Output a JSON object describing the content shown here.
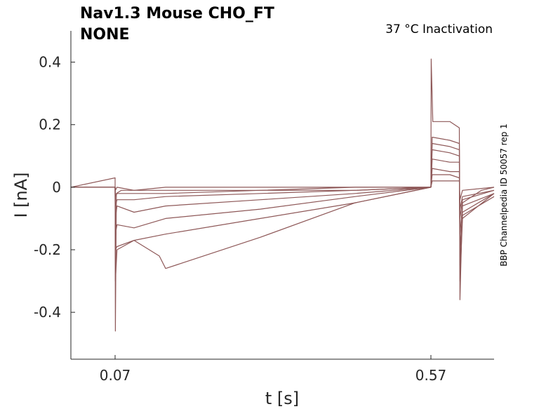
{
  "chart_data": {
    "type": "line",
    "title_lines": [
      "Nav1.3  Mouse  CHO_FT",
      "NONE"
    ],
    "condition_label": "37 °C  Inactivation",
    "side_label": "BBP Channelpedia ID 50057 rep 1",
    "xlabel": "t [s]",
    "ylabel": "I [nA]",
    "xlim": [
      0.0,
      0.67
    ],
    "ylim": [
      -0.55,
      0.5
    ],
    "x_ticks": [
      0.07,
      0.57
    ],
    "x_tick_labels": [
      "0.07",
      "0.57"
    ],
    "y_ticks": [
      0.4,
      0.2,
      0,
      -0.2,
      -0.4
    ],
    "y_tick_labels": [
      "0.4",
      "0.2",
      "0",
      "-0.2",
      "-0.4"
    ],
    "grid": false,
    "line_color": "#8e5858",
    "series": [
      {
        "x": [
          0.0,
          0.07,
          0.0705,
          0.072,
          0.08,
          0.15,
          0.3,
          0.45,
          0.565,
          0.57,
          0.5705,
          0.573,
          0.6,
          0.615,
          0.616,
          0.62,
          0.65,
          0.67
        ],
        "y": [
          0.0,
          0.03,
          -0.46,
          -0.02,
          -0.01,
          -0.01,
          -0.01,
          0.0,
          0.0,
          0.0,
          0.41,
          0.21,
          0.21,
          0.19,
          -0.36,
          -0.05,
          -0.01,
          0.0
        ]
      },
      {
        "x": [
          0.0,
          0.07,
          0.0705,
          0.073,
          0.1,
          0.15,
          0.3,
          0.45,
          0.57,
          0.572,
          0.6,
          0.615,
          0.616,
          0.62,
          0.67
        ],
        "y": [
          0.0,
          0.0,
          -0.3,
          -0.2,
          -0.17,
          -0.15,
          -0.1,
          -0.05,
          0.0,
          0.16,
          0.15,
          0.14,
          -0.3,
          -0.1,
          -0.02
        ]
      },
      {
        "x": [
          0.0,
          0.07,
          0.0705,
          0.073,
          0.1,
          0.14,
          0.15,
          0.3,
          0.45,
          0.57,
          0.572,
          0.6,
          0.615,
          0.616,
          0.62,
          0.67
        ],
        "y": [
          0.0,
          0.0,
          -0.2,
          -0.19,
          -0.17,
          -0.22,
          -0.26,
          -0.16,
          -0.05,
          0.0,
          0.14,
          0.13,
          0.12,
          -0.25,
          -0.09,
          -0.03
        ]
      },
      {
        "x": [
          0.0,
          0.07,
          0.0705,
          0.073,
          0.1,
          0.15,
          0.3,
          0.45,
          0.57,
          0.572,
          0.6,
          0.615,
          0.616,
          0.62,
          0.67
        ],
        "y": [
          0.0,
          0.0,
          -0.15,
          -0.12,
          -0.13,
          -0.1,
          -0.07,
          -0.03,
          0.0,
          0.12,
          0.11,
          0.1,
          -0.2,
          -0.08,
          -0.02
        ]
      },
      {
        "x": [
          0.0,
          0.07,
          0.0705,
          0.073,
          0.1,
          0.15,
          0.3,
          0.45,
          0.57,
          0.572,
          0.6,
          0.615,
          0.616,
          0.62,
          0.67
        ],
        "y": [
          0.0,
          0.0,
          -0.1,
          -0.06,
          -0.08,
          -0.06,
          -0.04,
          -0.02,
          0.0,
          0.09,
          0.08,
          0.08,
          -0.15,
          -0.06,
          -0.02
        ]
      },
      {
        "x": [
          0.0,
          0.07,
          0.0705,
          0.073,
          0.1,
          0.15,
          0.3,
          0.45,
          0.57,
          0.572,
          0.6,
          0.615,
          0.616,
          0.62,
          0.67
        ],
        "y": [
          0.0,
          0.0,
          -0.06,
          -0.04,
          -0.04,
          -0.03,
          -0.02,
          -0.01,
          0.0,
          0.06,
          0.05,
          0.05,
          -0.1,
          -0.04,
          -0.01
        ]
      },
      {
        "x": [
          0.0,
          0.07,
          0.0705,
          0.073,
          0.1,
          0.15,
          0.3,
          0.45,
          0.57,
          0.572,
          0.6,
          0.615,
          0.616,
          0.62,
          0.67
        ],
        "y": [
          0.0,
          0.0,
          -0.03,
          -0.02,
          -0.02,
          -0.02,
          -0.01,
          -0.01,
          0.0,
          0.04,
          0.04,
          0.03,
          -0.07,
          -0.03,
          -0.01
        ]
      },
      {
        "x": [
          0.0,
          0.07,
          0.0705,
          0.073,
          0.1,
          0.15,
          0.3,
          0.45,
          0.57,
          0.572,
          0.6,
          0.615,
          0.616,
          0.62,
          0.67
        ],
        "y": [
          0.0,
          0.0,
          -0.01,
          0.0,
          -0.01,
          0.0,
          0.0,
          0.0,
          0.0,
          0.02,
          0.02,
          0.02,
          -0.04,
          -0.01,
          0.0
        ]
      }
    ]
  }
}
